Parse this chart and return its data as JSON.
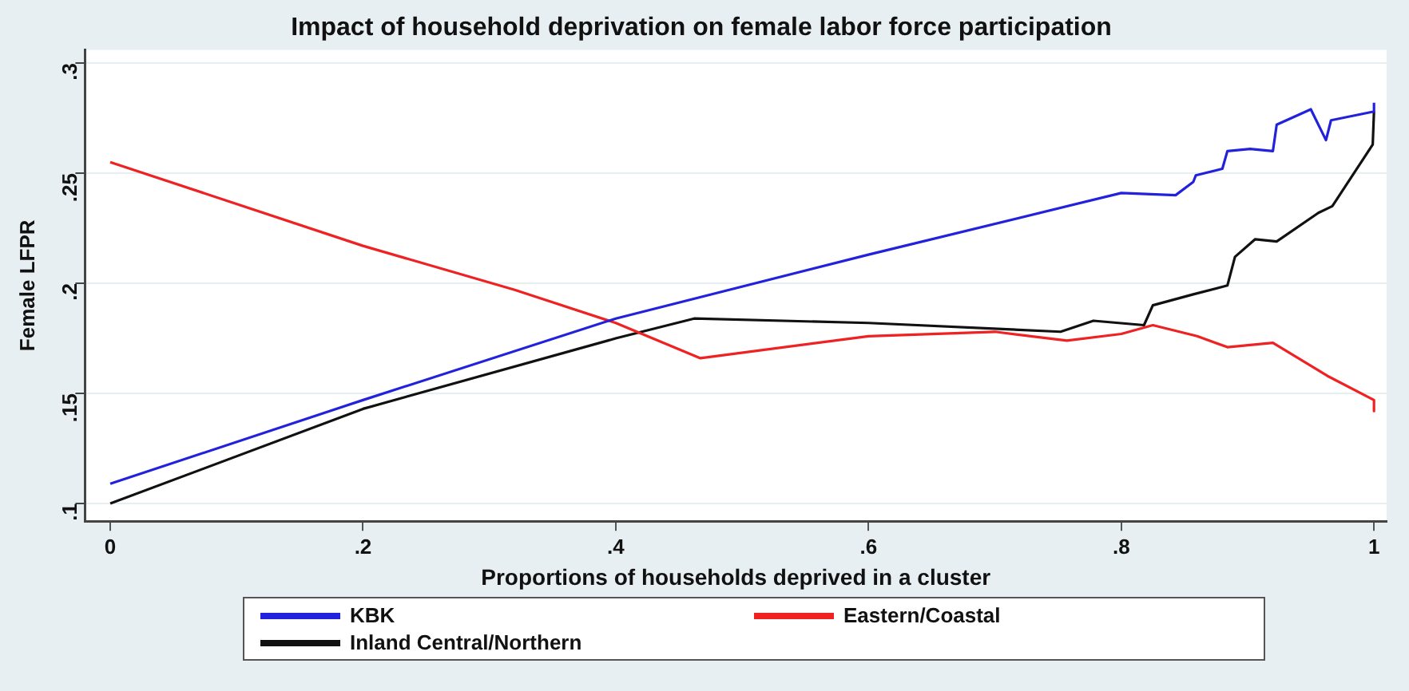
{
  "chart_data": {
    "type": "line",
    "title": "Impact of household deprivation on female labor force participation",
    "xlabel": "Proportions of households deprived in a cluster",
    "ylabel": "Female LFPR",
    "xlim": [
      -0.02,
      1.01
    ],
    "xticks": [
      0,
      {
        "value": 0.2,
        "label": ".2"
      },
      {
        "value": 0.4,
        "label": ".4"
      },
      {
        "value": 0.6,
        "label": ".6"
      },
      {
        "value": 0.8,
        "label": ".8"
      },
      1
    ],
    "ylim": [
      0.092,
      0.306
    ],
    "yticks": [
      {
        "value": 0.1,
        "label": ".1"
      },
      {
        "value": 0.15,
        "label": ".15"
      },
      {
        "value": 0.2,
        "label": ".2"
      },
      {
        "value": 0.25,
        "label": ".25"
      },
      {
        "value": 0.3,
        "label": ".3"
      }
    ],
    "grid": "y",
    "legend": "bottom",
    "marker": "none",
    "line_style": "solid",
    "series": [
      {
        "name": "KBK",
        "color": "#2222dd",
        "x": [
          0,
          0.2,
          0.4,
          0.6,
          0.8,
          0.843,
          0.857,
          0.859,
          0.88,
          0.884,
          0.902,
          0.92,
          0.923,
          0.95,
          0.962,
          0.966,
          1.0,
          1.0
        ],
        "values": [
          0.109,
          0.147,
          0.184,
          0.213,
          0.241,
          0.24,
          0.246,
          0.249,
          0.252,
          0.26,
          0.261,
          0.26,
          0.272,
          0.279,
          0.265,
          0.274,
          0.278,
          0.282
        ]
      },
      {
        "name": "Eastern/Coastal",
        "color": "#ee2222",
        "x": [
          0,
          0.2,
          0.32,
          0.4,
          0.467,
          0.6,
          0.7,
          0.757,
          0.8,
          0.825,
          0.86,
          0.884,
          0.92,
          0.963,
          1.0,
          1.0
        ],
        "values": [
          0.255,
          0.217,
          0.197,
          0.182,
          0.166,
          0.176,
          0.178,
          0.174,
          0.177,
          0.181,
          0.176,
          0.171,
          0.173,
          0.158,
          0.147,
          0.142
        ]
      },
      {
        "name": "Inland Central/Northern",
        "color": "#111111",
        "x": [
          0,
          0.2,
          0.4,
          0.462,
          0.6,
          0.752,
          0.778,
          0.818,
          0.825,
          0.857,
          0.884,
          0.89,
          0.906,
          0.923,
          0.956,
          0.967,
          0.999,
          1.0
        ],
        "values": [
          0.1,
          0.143,
          0.175,
          0.184,
          0.182,
          0.178,
          0.183,
          0.181,
          0.19,
          0.195,
          0.199,
          0.212,
          0.22,
          0.219,
          0.232,
          0.235,
          0.263,
          0.278
        ]
      }
    ]
  }
}
